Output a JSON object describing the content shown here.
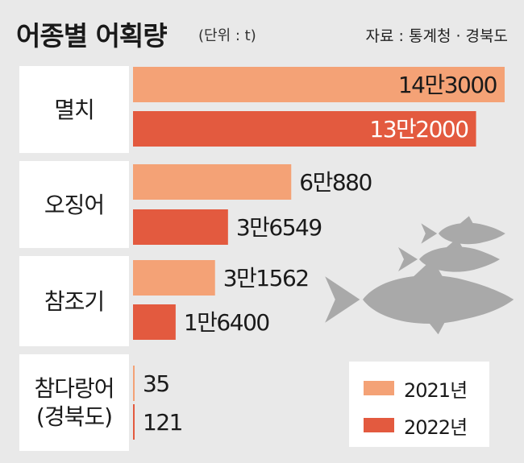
{
  "header": {
    "title": "어종별 어획량",
    "unit": "(단위 : t)",
    "source": "자료 : 통계청 · 경북도"
  },
  "colors": {
    "year_2021": "#f4a276",
    "year_2022": "#e35a3f",
    "background": "#e9e9e9",
    "fish_silhouette": "#a9a9a9"
  },
  "legend": [
    {
      "label": "2021년"
    },
    {
      "label": "2022년"
    }
  ],
  "chart_data": {
    "type": "bar",
    "orientation": "horizontal",
    "title": "어종별 어획량",
    "unit": "t",
    "categories": [
      "멸치",
      "오징어",
      "참조기",
      "참다랑어(경북도)"
    ],
    "category_lines": [
      [
        "멸치"
      ],
      [
        "오징어"
      ],
      [
        "참조기"
      ],
      [
        "참다랑어",
        "(경북도)"
      ]
    ],
    "series": [
      {
        "name": "2021년",
        "values": [
          143000,
          60880,
          31562,
          35
        ],
        "labels": [
          "14만3000",
          "6만880",
          "3만1562",
          "35"
        ]
      },
      {
        "name": "2022년",
        "values": [
          132000,
          36549,
          16400,
          121
        ],
        "labels": [
          "13만2000",
          "3만6549",
          "1만6400",
          "121"
        ]
      }
    ],
    "grid": false,
    "legend_position": "bottom-right"
  }
}
